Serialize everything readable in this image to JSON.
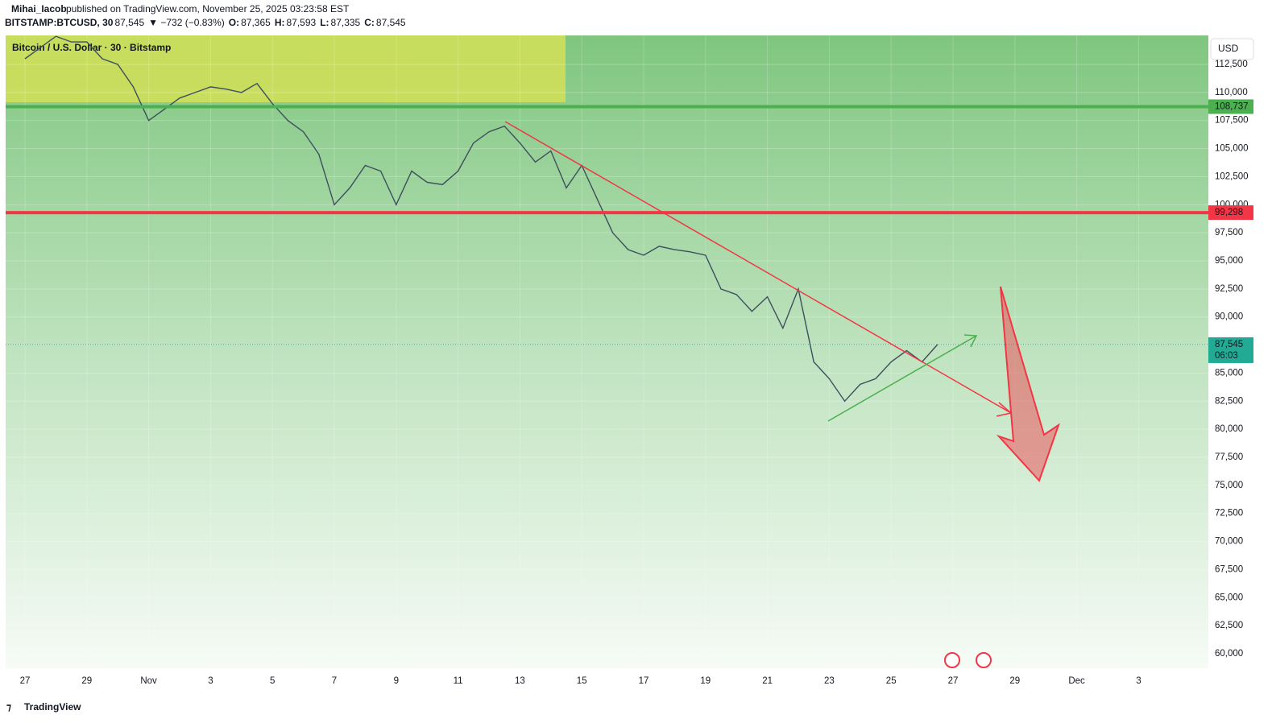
{
  "header": {
    "author": "Mihai_Iacob",
    "published": "published on TradingView.com, November 25, 2025 03:23:58 EST",
    "symbol": "BITSTAMP:BTCUSD, 30",
    "last": "87,545",
    "change": "▼ −732 (−0.83%)",
    "o_label": "O:",
    "o": "87,365",
    "h_label": "H:",
    "h": "87,593",
    "l_label": "L:",
    "l": "87,335",
    "c_label": "C:",
    "c": "87,545"
  },
  "footer": {
    "logo": "TradingView"
  },
  "chart_data": {
    "type": "line",
    "title": "Bitcoin / U.S. Dollar · 30 · Bitstamp",
    "currency": "USD",
    "xticks": [
      "27",
      "29",
      "Nov",
      "3",
      "5",
      "7",
      "9",
      "11",
      "13",
      "15",
      "17",
      "19",
      "21",
      "23",
      "25",
      "27",
      "29",
      "Dec",
      "3"
    ],
    "series": [
      {
        "name": "BTCUSD",
        "color": "#3d4f5c",
        "values": [
          113000,
          114000,
          115000,
          114500,
          114500,
          113000,
          112500,
          110500,
          107500,
          108500,
          109500,
          110000,
          110500,
          110300,
          110000,
          110800,
          109000,
          107500,
          106500,
          104500,
          100000,
          101500,
          103500,
          103000,
          100000,
          103000,
          102000,
          101800,
          103000,
          105500,
          106500,
          107000,
          105500,
          103800,
          104800,
          101500,
          103500,
          100500,
          97500,
          96000,
          95500,
          96300,
          96000,
          95800,
          95500,
          92500,
          92000,
          90500,
          91800,
          89000,
          92500,
          86000,
          84500,
          82500,
          84000,
          84500,
          86000,
          87000,
          86000,
          87545
        ]
      }
    ],
    "ylim": [
      58709,
      115082
    ],
    "yticks": [
      {
        "value": 60000,
        "label": "60,000"
      },
      {
        "value": 62500,
        "label": "62,500"
      },
      {
        "value": 65000,
        "label": "65,000"
      },
      {
        "value": 67500,
        "label": "67,500"
      },
      {
        "value": 70000,
        "label": "70,000"
      },
      {
        "value": 72500,
        "label": "72,500"
      },
      {
        "value": 75000,
        "label": "75,000"
      },
      {
        "value": 77500,
        "label": "77,500"
      },
      {
        "value": 80000,
        "label": "80,000"
      },
      {
        "value": 82500,
        "label": "82,500"
      },
      {
        "value": 85000,
        "label": "85,000"
      },
      {
        "value": 87500,
        "label": "87,500"
      },
      {
        "value": 90000,
        "label": "90,000"
      },
      {
        "value": 92500,
        "label": "92,500"
      },
      {
        "value": 95000,
        "label": "95,000"
      },
      {
        "value": 97500,
        "label": "97,500"
      },
      {
        "value": 100000,
        "label": "100,000"
      },
      {
        "value": 102500,
        "label": "102,500"
      },
      {
        "value": 105000,
        "label": "105,000"
      },
      {
        "value": 107500,
        "label": "107,500"
      },
      {
        "value": 110000,
        "label": "110,000"
      },
      {
        "value": 112500,
        "label": "112,500"
      }
    ],
    "levels": [
      {
        "value": 108737,
        "label": "108,737",
        "color": "#4caf50"
      },
      {
        "value": 99298,
        "label": "99,298",
        "color": "#f23645"
      }
    ],
    "last_price": {
      "value": 87545,
      "label": "87,545",
      "countdown": "06:03",
      "color": "#22ab94"
    }
  }
}
